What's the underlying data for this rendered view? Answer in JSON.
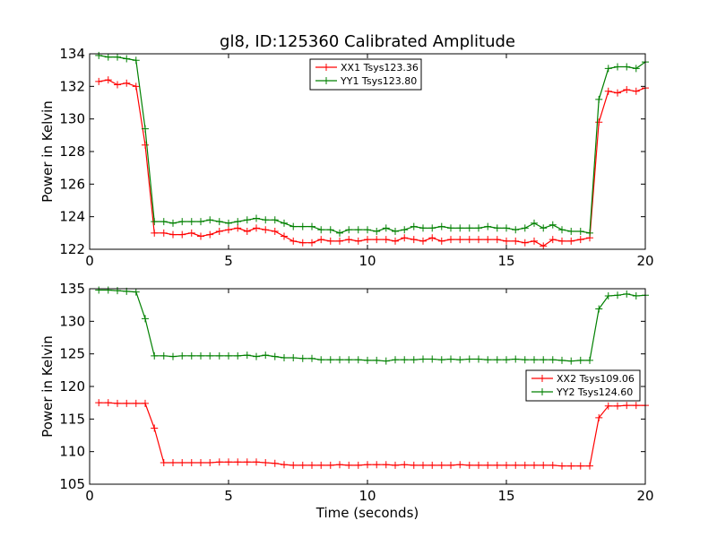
{
  "chart_data": [
    {
      "type": "line",
      "title": "gl8, ID:125360 Calibrated Amplitude",
      "xlabel": "",
      "ylabel": "Power in Kelvin",
      "xlim": [
        0,
        20
      ],
      "ylim": [
        122,
        134
      ],
      "xticks": [
        "0",
        "5",
        "10",
        "15",
        "20"
      ],
      "yticks": [
        "122",
        "124",
        "126",
        "128",
        "130",
        "132",
        "134"
      ],
      "legend_position": "top-center",
      "grid": false,
      "x": [
        0.33,
        0.67,
        1.0,
        1.33,
        1.67,
        2.0,
        2.33,
        2.67,
        3.0,
        3.33,
        3.67,
        4.0,
        4.33,
        4.67,
        5.0,
        5.33,
        5.67,
        6.0,
        6.33,
        6.67,
        7.0,
        7.33,
        7.67,
        8.0,
        8.33,
        8.67,
        9.0,
        9.33,
        9.67,
        10.0,
        10.33,
        10.67,
        11.0,
        11.33,
        11.67,
        12.0,
        12.33,
        12.67,
        13.0,
        13.33,
        13.67,
        14.0,
        14.33,
        14.67,
        15.0,
        15.33,
        15.67,
        16.0,
        16.33,
        16.67,
        17.0,
        17.33,
        17.67,
        18.0,
        18.33,
        18.67,
        19.0,
        19.33,
        19.67,
        20.0
      ],
      "series": [
        {
          "name": "XX1 Tsys123.36",
          "color": "#ff0000",
          "values": [
            132.3,
            132.4,
            132.1,
            132.2,
            132.0,
            128.4,
            123.0,
            123.0,
            122.9,
            122.9,
            123.0,
            122.8,
            122.9,
            123.1,
            123.2,
            123.3,
            123.1,
            123.3,
            123.2,
            123.1,
            122.8,
            122.5,
            122.4,
            122.4,
            122.6,
            122.5,
            122.5,
            122.6,
            122.5,
            122.6,
            122.6,
            122.6,
            122.5,
            122.7,
            122.6,
            122.5,
            122.7,
            122.5,
            122.6,
            122.6,
            122.6,
            122.6,
            122.6,
            122.6,
            122.5,
            122.5,
            122.4,
            122.5,
            122.2,
            122.6,
            122.5,
            122.5,
            122.6,
            122.7,
            129.8,
            131.7,
            131.6,
            131.8,
            131.7,
            131.9
          ]
        },
        {
          "name": "YY1 Tsys123.80",
          "color": "#008000",
          "values": [
            133.9,
            133.8,
            133.8,
            133.7,
            133.6,
            129.4,
            123.7,
            123.7,
            123.6,
            123.7,
            123.7,
            123.7,
            123.8,
            123.7,
            123.6,
            123.7,
            123.8,
            123.9,
            123.8,
            123.8,
            123.6,
            123.4,
            123.4,
            123.4,
            123.2,
            123.2,
            123.0,
            123.2,
            123.2,
            123.2,
            123.1,
            123.3,
            123.1,
            123.2,
            123.4,
            123.3,
            123.3,
            123.4,
            123.3,
            123.3,
            123.3,
            123.3,
            123.4,
            123.3,
            123.3,
            123.2,
            123.3,
            123.6,
            123.3,
            123.5,
            123.2,
            123.1,
            123.1,
            123.0,
            131.2,
            133.1,
            133.2,
            133.2,
            133.1,
            133.5
          ]
        }
      ]
    },
    {
      "type": "line",
      "title": "",
      "xlabel": "Time (seconds)",
      "ylabel": "Power in Kelvin",
      "xlim": [
        0,
        20
      ],
      "ylim": [
        105,
        135
      ],
      "xticks": [
        "0",
        "5",
        "10",
        "15",
        "20"
      ],
      "yticks": [
        "105",
        "110",
        "115",
        "120",
        "125",
        "130",
        "135"
      ],
      "legend_position": "right",
      "grid": false,
      "x": [
        0.33,
        0.67,
        1.0,
        1.33,
        1.67,
        2.0,
        2.33,
        2.67,
        3.0,
        3.33,
        3.67,
        4.0,
        4.33,
        4.67,
        5.0,
        5.33,
        5.67,
        6.0,
        6.33,
        6.67,
        7.0,
        7.33,
        7.67,
        8.0,
        8.33,
        8.67,
        9.0,
        9.33,
        9.67,
        10.0,
        10.33,
        10.67,
        11.0,
        11.33,
        11.67,
        12.0,
        12.33,
        12.67,
        13.0,
        13.33,
        13.67,
        14.0,
        14.33,
        14.67,
        15.0,
        15.33,
        15.67,
        16.0,
        16.33,
        16.67,
        17.0,
        17.33,
        17.67,
        18.0,
        18.33,
        18.67,
        19.0,
        19.33,
        19.67,
        20.0
      ],
      "series": [
        {
          "name": "XX2 Tsys109.06",
          "color": "#ff0000",
          "values": [
            117.5,
            117.5,
            117.4,
            117.4,
            117.4,
            117.4,
            113.6,
            108.3,
            108.3,
            108.3,
            108.3,
            108.3,
            108.3,
            108.4,
            108.4,
            108.4,
            108.4,
            108.4,
            108.3,
            108.2,
            108.0,
            107.9,
            107.9,
            107.9,
            107.9,
            107.9,
            108.0,
            107.9,
            107.9,
            108.0,
            108.0,
            108.0,
            107.9,
            108.0,
            107.9,
            107.9,
            107.9,
            107.9,
            107.9,
            108.0,
            107.9,
            107.9,
            107.9,
            107.9,
            107.9,
            107.9,
            107.9,
            107.9,
            107.9,
            107.9,
            107.8,
            107.8,
            107.8,
            107.8,
            115.2,
            117.0,
            117.0,
            117.1,
            117.1,
            117.1
          ]
        },
        {
          "name": "YY2 Tsys124.60",
          "color": "#008000",
          "values": [
            134.8,
            134.8,
            134.7,
            134.6,
            134.5,
            130.4,
            124.7,
            124.7,
            124.6,
            124.7,
            124.7,
            124.7,
            124.7,
            124.7,
            124.7,
            124.7,
            124.8,
            124.6,
            124.8,
            124.6,
            124.4,
            124.4,
            124.3,
            124.3,
            124.1,
            124.1,
            124.1,
            124.1,
            124.1,
            124.0,
            124.0,
            123.9,
            124.1,
            124.1,
            124.1,
            124.2,
            124.2,
            124.1,
            124.2,
            124.1,
            124.2,
            124.2,
            124.1,
            124.1,
            124.1,
            124.2,
            124.1,
            124.1,
            124.1,
            124.1,
            124.0,
            123.9,
            124.0,
            124.0,
            131.9,
            133.9,
            134.0,
            134.2,
            133.9,
            134.0
          ]
        }
      ]
    }
  ]
}
